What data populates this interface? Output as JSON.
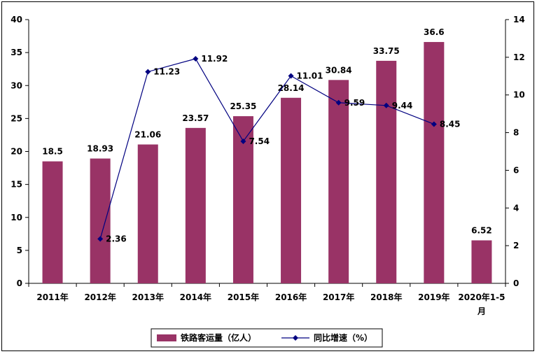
{
  "chart_data": {
    "type": "bar",
    "categories": [
      "2011年",
      "2012年",
      "2013年",
      "2014年",
      "2015年",
      "2016年",
      "2017年",
      "2018年",
      "2019年",
      "2020年1-5月"
    ],
    "series": [
      {
        "name": "铁路客运量（亿人）",
        "type": "bar",
        "axis": "left",
        "color": "#993366",
        "values": [
          18.5,
          18.93,
          21.06,
          23.57,
          25.35,
          28.14,
          30.84,
          33.75,
          36.6,
          6.52
        ],
        "labels": [
          "18.5",
          "18.93",
          "21.06",
          "23.57",
          "25.35",
          "28.14",
          "30.84",
          "33.75",
          "36.6",
          "6.52"
        ]
      },
      {
        "name": "同比增速（%）",
        "type": "line",
        "axis": "right",
        "color": "#000080",
        "values": [
          null,
          2.36,
          11.23,
          11.92,
          7.54,
          11.01,
          9.59,
          9.44,
          8.45,
          null
        ],
        "labels": [
          "",
          "2.36",
          "11.23",
          "11.92",
          "7.54",
          "11.01",
          "9.59",
          "9.44",
          "8.45",
          ""
        ]
      }
    ],
    "ylim_left": [
      0,
      40
    ],
    "yticks_left": [
      0,
      5,
      10,
      15,
      20,
      25,
      30,
      35,
      40
    ],
    "ylim_right": [
      0,
      14
    ],
    "yticks_right": [
      0,
      2,
      4,
      6,
      8,
      10,
      12,
      14
    ],
    "grid": false,
    "legend": "bottom-center"
  }
}
